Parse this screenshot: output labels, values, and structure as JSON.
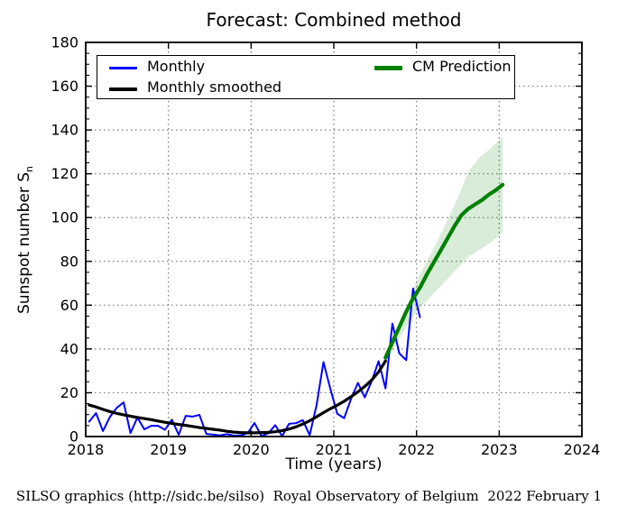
{
  "header": {
    "title": "Forecast: Combined method"
  },
  "axes": {
    "xlabel": "Time (years)",
    "ylabel_text": "Sunspot number S",
    "ylabel_subscript": "n"
  },
  "legend": {
    "monthly": "Monthly",
    "smoothed": "Monthly smoothed",
    "prediction": "CM Prediction"
  },
  "caption": "SILSO graphics (http://sidc.be/silso)  Royal Observatory of Belgium  2022 February 1",
  "colors": {
    "monthly": "#0000ff",
    "smoothed": "#000000",
    "prediction": "#008000",
    "band_fill": "#008000",
    "band_opacity": 0.15,
    "grid": "#777777",
    "frame": "#000000"
  },
  "chart_data": {
    "type": "line",
    "title": "Forecast: Combined method",
    "xlabel": "Time (years)",
    "ylabel": "Sunspot number Sn",
    "xlim": [
      2018,
      2024
    ],
    "ylim": [
      0,
      180
    ],
    "xticks": [
      2018,
      2019,
      2020,
      2021,
      2022,
      2023,
      2024
    ],
    "yticks": [
      0,
      20,
      40,
      60,
      80,
      100,
      120,
      140,
      160,
      180
    ],
    "y_minor_step": 5,
    "grid": true,
    "legend_position": "upper left",
    "series": [
      {
        "name": "Monthly",
        "color": "#0000ff",
        "line_width": 2,
        "x_start_year": 2018,
        "x_start_month": 1,
        "cadence": "monthly",
        "values": [
          6.8,
          10.7,
          2.5,
          8.9,
          13.1,
          15.6,
          1.6,
          8.7,
          3.3,
          4.9,
          4.9,
          3.1,
          7.7,
          0.8,
          9.4,
          9.1,
          9.9,
          1.2,
          0.9,
          0.5,
          1.1,
          0.4,
          0.5,
          1.5,
          6.2,
          0.2,
          1.5,
          5.2,
          0.2,
          5.8,
          6.1,
          7.5,
          0.6,
          14.4,
          34.0,
          21.8,
          10.4,
          8.4,
          17.2,
          24.5,
          17.9,
          25.3,
          34.4,
          22.0,
          51.6,
          38.0,
          34.9,
          67.6,
          54.5
        ]
      },
      {
        "name": "Monthly smoothed",
        "color": "#000000",
        "line_width": 3.2,
        "x_start_year": 2018,
        "x_start_month": 1,
        "cadence": "monthly",
        "values": [
          14.4,
          13.5,
          12.4,
          11.4,
          10.6,
          9.9,
          9.3,
          8.7,
          8.2,
          7.7,
          7.1,
          6.5,
          6.0,
          5.5,
          5.1,
          4.6,
          4.1,
          3.7,
          3.3,
          2.9,
          2.4,
          2.0,
          1.8,
          1.7,
          1.7,
          1.8,
          1.9,
          2.2,
          2.7,
          3.4,
          4.4,
          5.7,
          7.2,
          9.0,
          10.9,
          12.7,
          14.3,
          16.1,
          18.2,
          20.4,
          22.9,
          25.8,
          29.5,
          34.5
        ]
      },
      {
        "name": "CM Prediction",
        "color": "#008000",
        "line_width": 4.2,
        "x": [
          2021.625,
          2021.708,
          2021.792,
          2021.875,
          2021.958,
          2022.042,
          2022.125,
          2022.208,
          2022.292,
          2022.375,
          2022.458,
          2022.542,
          2022.625,
          2022.708,
          2022.792,
          2022.875,
          2022.958,
          2023.042
        ],
        "values": [
          36,
          43,
          50,
          57,
          63,
          68,
          74,
          79.5,
          85,
          90.5,
          96,
          101,
          104,
          106,
          108,
          110.5,
          112.5,
          115
        ]
      }
    ],
    "uncertainty_band": {
      "name": "CM Prediction range",
      "x": [
        2021.625,
        2021.75,
        2021.875,
        2022.0,
        2022.125,
        2022.25,
        2022.375,
        2022.5,
        2022.625,
        2022.75,
        2022.875,
        2023.042
      ],
      "upper": [
        38,
        48,
        59,
        71,
        80,
        89,
        99,
        109,
        121,
        127,
        131,
        137
      ],
      "lower": [
        34,
        42,
        50,
        57,
        62,
        67,
        72,
        77,
        82,
        85,
        88,
        93
      ]
    }
  }
}
